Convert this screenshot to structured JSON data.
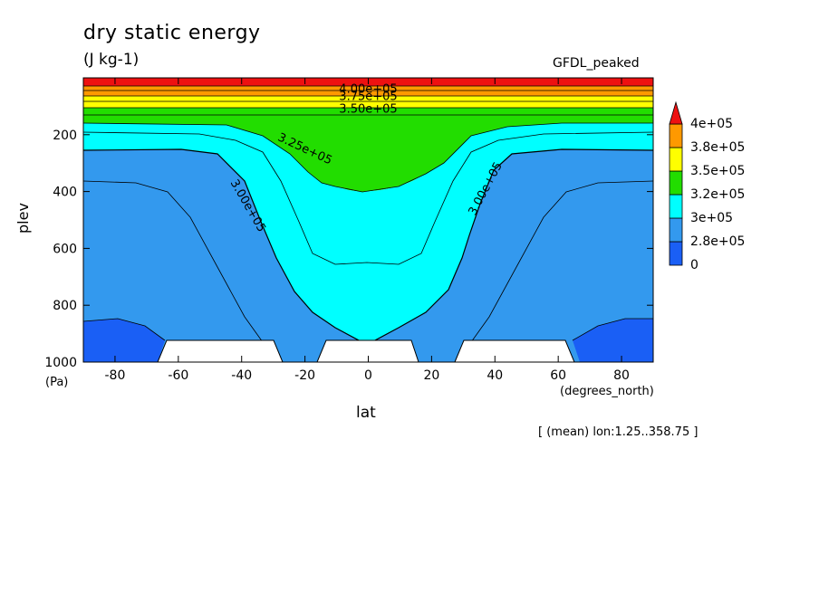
{
  "chart_data": {
    "type": "contourf",
    "title": "dry static energy",
    "units": "(J kg-1)",
    "model_label": "GFDL_peaked",
    "xlabel": "lat",
    "xunits": "(degrees_north)",
    "ylabel": "plev",
    "yunits": "(Pa)",
    "footnote": "[ (mean) lon:1.25..358.75 ]",
    "xlim": [
      -90,
      90
    ],
    "ylim": [
      1000,
      0
    ],
    "xticks": [
      -80,
      -60,
      -40,
      -20,
      0,
      20,
      40,
      60,
      80
    ],
    "yticks": [
      200,
      400,
      600,
      800,
      1000
    ],
    "levels": [
      {
        "label": "0",
        "color": "#1a5ff5"
      },
      {
        "label": "2.8e+05",
        "color": "#3399ee"
      },
      {
        "label": "3e+05",
        "color": "#00ffff"
      },
      {
        "label": "3.2e+05",
        "color": "#22dd00"
      },
      {
        "label": "3.5e+05",
        "color": "#ffff00"
      },
      {
        "label": "3.8e+05",
        "color": "#ff9900"
      },
      {
        "label": "4e+05",
        "color": "#ee1111"
      }
    ],
    "contour_labels": [
      {
        "text": "4.00e+05",
        "lat": 0,
        "plev": 40
      },
      {
        "text": "3.75e+05",
        "lat": 0,
        "plev": 65
      },
      {
        "text": "3.50e+05",
        "lat": 0,
        "plev": 110
      },
      {
        "text": "3.25e+05",
        "lat": -20,
        "plev": 250
      },
      {
        "text": "3.00e+05",
        "lat": -38,
        "plev": 450
      },
      {
        "text": "3.00e+05",
        "lat": 37,
        "plev": 390
      }
    ]
  }
}
